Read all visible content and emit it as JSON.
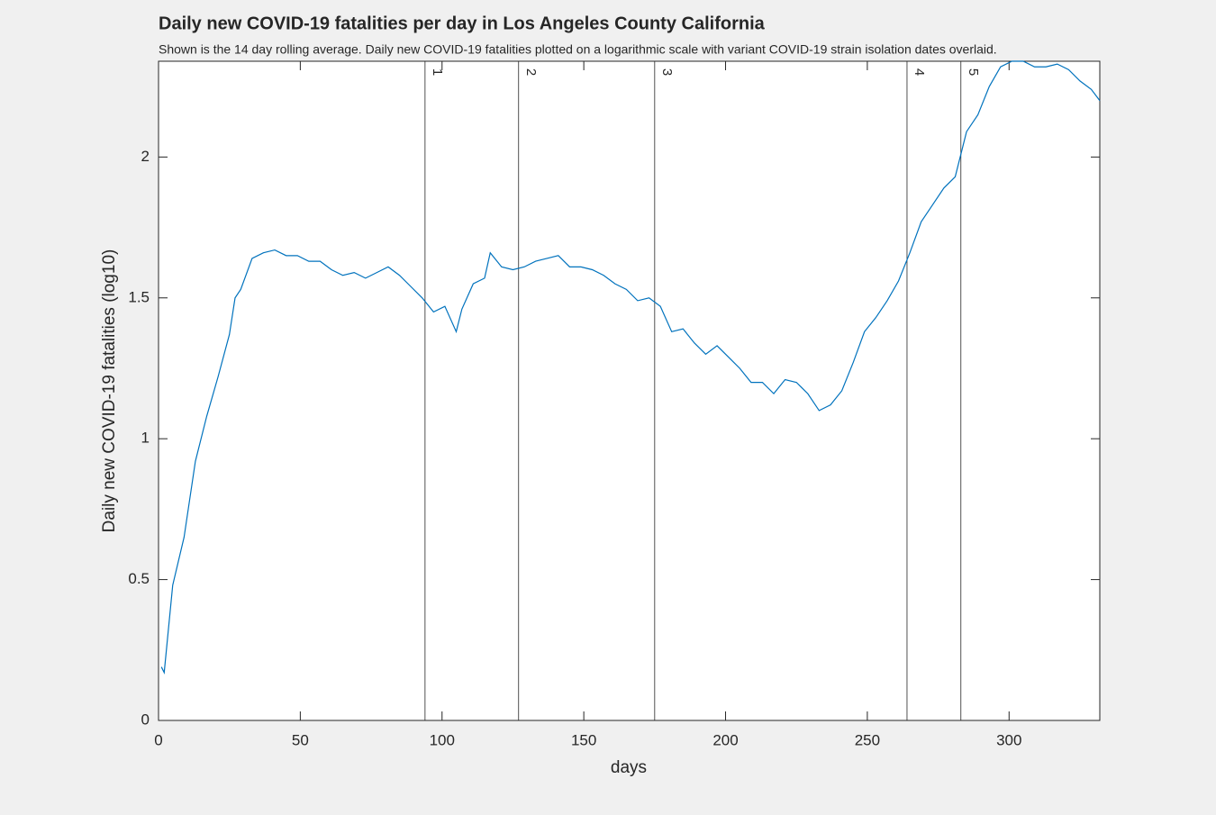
{
  "chart_data": {
    "type": "line",
    "title": "Daily new COVID-19 fatalities per day in Los Angeles County California",
    "subtitle": "Shown is the 14 day rolling average. Daily new COVID-19 fatalities plotted on a logarithmic scale with variant COVID-19 strain isolation dates overlaid.",
    "x_label": "days",
    "y_label": "Daily new COVID-19 fatalities (log10)",
    "x": [
      1,
      2,
      5,
      9,
      13,
      17,
      21,
      25,
      27,
      29,
      33,
      37,
      41,
      45,
      49,
      53,
      57,
      61,
      65,
      69,
      73,
      77,
      81,
      85,
      89,
      93,
      97,
      101,
      105,
      107,
      111,
      115,
      117,
      121,
      125,
      129,
      133,
      137,
      141,
      145,
      149,
      153,
      157,
      161,
      165,
      169,
      173,
      177,
      181,
      185,
      189,
      193,
      197,
      201,
      205,
      209,
      213,
      217,
      221,
      225,
      229,
      233,
      237,
      241,
      245,
      249,
      253,
      257,
      261,
      265,
      269,
      273,
      277,
      281,
      285,
      289,
      293,
      297,
      301,
      305,
      309,
      313,
      317,
      321,
      325,
      329,
      332
    ],
    "series": [
      {
        "name": "fatalities",
        "color": "#0072bd",
        "values": [
          0.19,
          0.17,
          0.48,
          0.65,
          0.92,
          1.08,
          1.22,
          1.37,
          1.5,
          1.53,
          1.64,
          1.66,
          1.67,
          1.65,
          1.65,
          1.63,
          1.63,
          1.6,
          1.58,
          1.59,
          1.57,
          1.59,
          1.61,
          1.58,
          1.54,
          1.5,
          1.45,
          1.47,
          1.38,
          1.46,
          1.55,
          1.57,
          1.66,
          1.61,
          1.6,
          1.61,
          1.63,
          1.64,
          1.65,
          1.61,
          1.61,
          1.6,
          1.58,
          1.55,
          1.53,
          1.49,
          1.5,
          1.47,
          1.38,
          1.39,
          1.34,
          1.3,
          1.33,
          1.29,
          1.25,
          1.2,
          1.2,
          1.16,
          1.21,
          1.2,
          1.16,
          1.1,
          1.12,
          1.17,
          1.27,
          1.38,
          1.43,
          1.49,
          1.56,
          1.66,
          1.77,
          1.83,
          1.89,
          1.93,
          2.09,
          2.15,
          2.25,
          2.32,
          2.34,
          2.34,
          2.32,
          2.32,
          2.33,
          2.31,
          2.27,
          2.24,
          2.2
        ]
      }
    ],
    "vlines": [
      {
        "x": 94,
        "label": "1"
      },
      {
        "x": 127,
        "label": "2"
      },
      {
        "x": 175,
        "label": "3"
      },
      {
        "x": 264,
        "label": "4"
      },
      {
        "x": 283,
        "label": "5"
      }
    ],
    "xlim": [
      0,
      332
    ],
    "ylim": [
      0,
      2.34
    ],
    "xticks": [
      0,
      50,
      100,
      150,
      200,
      250,
      300
    ],
    "yticks": [
      0,
      0.5,
      1,
      1.5,
      2
    ]
  }
}
